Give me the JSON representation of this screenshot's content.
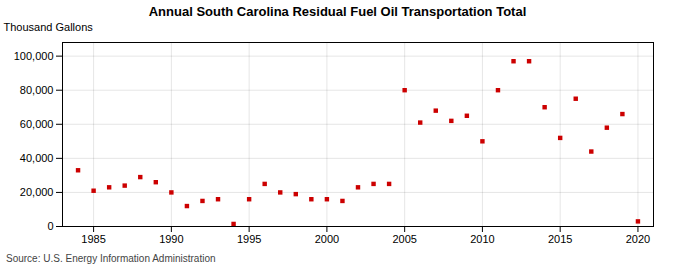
{
  "chart_data": {
    "type": "scatter",
    "title": "Annual South Carolina Residual Fuel Oil Transportation Total",
    "ylabel": "Thousand Gallons",
    "source": "Source: U.S. Energy Information Administration",
    "color": "#cc0000",
    "marker": "square",
    "grid": true,
    "x": [
      1984,
      1985,
      1986,
      1987,
      1988,
      1989,
      1990,
      1991,
      1992,
      1993,
      1994,
      1995,
      1996,
      1997,
      1998,
      1999,
      2000,
      2001,
      2002,
      2003,
      2004,
      2005,
      2006,
      2007,
      2008,
      2009,
      2010,
      2011,
      2012,
      2013,
      2014,
      2015,
      2016,
      2017,
      2018,
      2019,
      2020
    ],
    "values": [
      33000,
      21000,
      23000,
      24000,
      29000,
      26000,
      20000,
      12000,
      15000,
      16000,
      1500,
      16000,
      25000,
      20000,
      19000,
      16000,
      16000,
      15000,
      23000,
      25000,
      25000,
      80000,
      61000,
      68000,
      62000,
      65000,
      50000,
      80000,
      97000,
      97000,
      70000,
      52000,
      75000,
      44000,
      58000,
      66000,
      3000
    ],
    "xlim": [
      1983,
      2021
    ],
    "xticks": [
      1985,
      1990,
      1995,
      2000,
      2005,
      2010,
      2015,
      2020
    ],
    "ylim": [
      0,
      108000
    ],
    "yticks": [
      0,
      {
        "value": 20000,
        "label": "20,000"
      },
      {
        "value": 40000,
        "label": "40,000"
      },
      {
        "value": 60000,
        "label": "60,000"
      },
      {
        "value": 80000,
        "label": "80,000"
      },
      {
        "value": 100000,
        "label": "100,000"
      }
    ]
  }
}
